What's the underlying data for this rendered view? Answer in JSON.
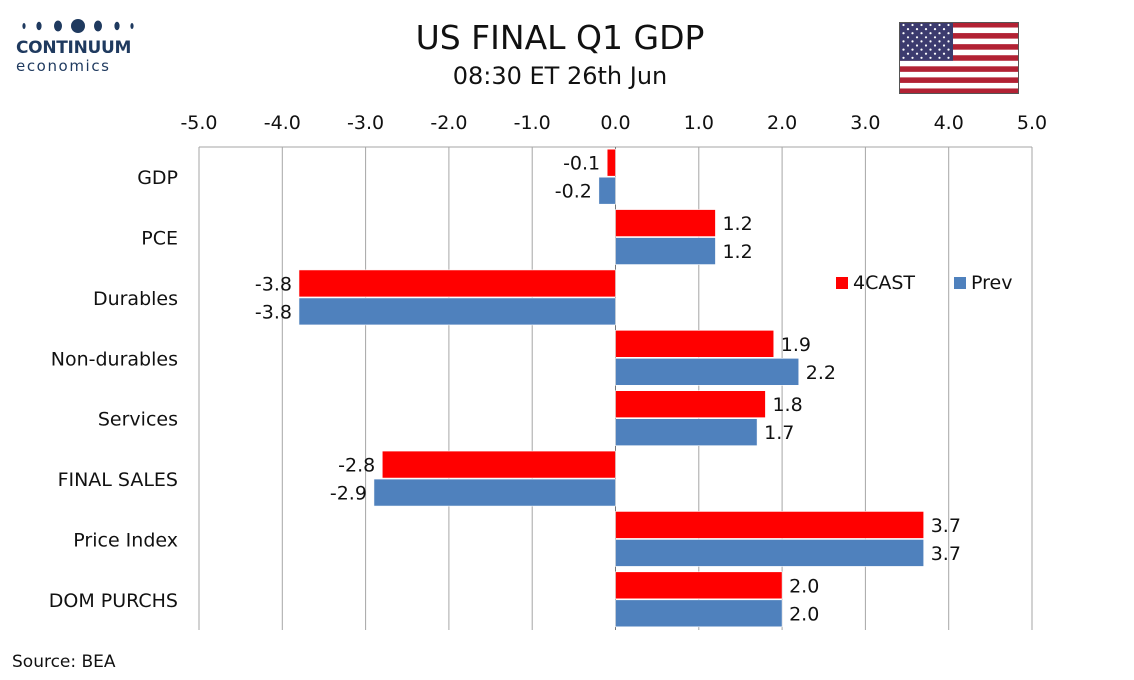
{
  "header": {
    "logo_name": "CONTINUUM",
    "logo_sub": "economics",
    "title": "US FINAL Q1 GDP",
    "subtitle": "08:30 ET 26th Jun"
  },
  "footer": {
    "source": "Source: BEA"
  },
  "colors": {
    "forecast": "#ff0000",
    "previous": "#4f81bd",
    "grid": "#a6a6a6",
    "logo": "#1f3a5f"
  },
  "icons": {
    "logo": "continuum-logo-icon",
    "flag": "us-flag-icon"
  },
  "chart_data": {
    "type": "bar",
    "orientation": "horizontal",
    "title": "US FINAL Q1 GDP",
    "subtitle": "08:30 ET 26th Jun",
    "categories": [
      "GDP",
      "PCE",
      "Durables",
      "Non-durables",
      "Services",
      "FINAL SALES",
      "Price Index",
      "DOM PURCHS"
    ],
    "series": [
      {
        "name": "4CAST",
        "color": "#ff0000",
        "values": [
          -0.1,
          1.2,
          -3.8,
          1.9,
          1.8,
          -2.8,
          3.7,
          2.0
        ]
      },
      {
        "name": "Prev",
        "color": "#4f81bd",
        "values": [
          -0.2,
          1.2,
          -3.8,
          2.2,
          1.7,
          -2.9,
          3.7,
          2.0
        ]
      }
    ],
    "xlim": [
      -5.0,
      5.0
    ],
    "xticks": [
      -5.0,
      -4.0,
      -3.0,
      -2.0,
      -1.0,
      0.0,
      1.0,
      2.0,
      3.0,
      4.0,
      5.0
    ],
    "tick_labels": [
      "-5.0",
      "-4.0",
      "-3.0",
      "-2.0",
      "-1.0",
      "0.0",
      "1.0",
      "2.0",
      "3.0",
      "4.0",
      "5.0"
    ],
    "axis_position": "top",
    "grid": true,
    "legend": "right"
  }
}
